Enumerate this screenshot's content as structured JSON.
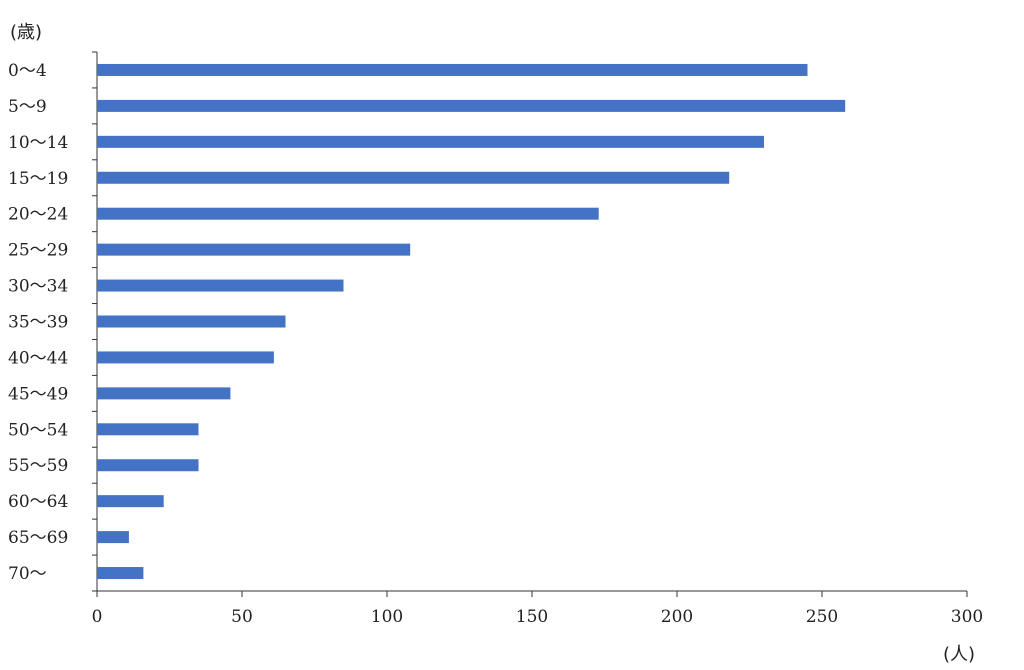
{
  "chart_data": {
    "type": "bar",
    "orientation": "horizontal",
    "title": "",
    "ylabel": "(歳)",
    "xlabel": "(人)",
    "categories": [
      "0～4",
      "5～9",
      "10～14",
      "15～19",
      "20～24",
      "25～29",
      "30～34",
      "35～39",
      "40～44",
      "45～49",
      "50～54",
      "55～59",
      "60～64",
      "65～69",
      "70～"
    ],
    "series": [
      {
        "values": [
          245,
          258,
          230,
          218,
          173,
          108,
          85,
          65,
          61,
          46,
          35,
          35,
          23,
          11,
          16
        ]
      }
    ],
    "xlim": [
      0,
      300
    ],
    "xticks": [
      0,
      50,
      100,
      150,
      200,
      250,
      300
    ],
    "grid": false,
    "legend": "none",
    "colors": {
      "bar": "#4472C4",
      "axis": "#333333",
      "text": "#222222"
    }
  }
}
